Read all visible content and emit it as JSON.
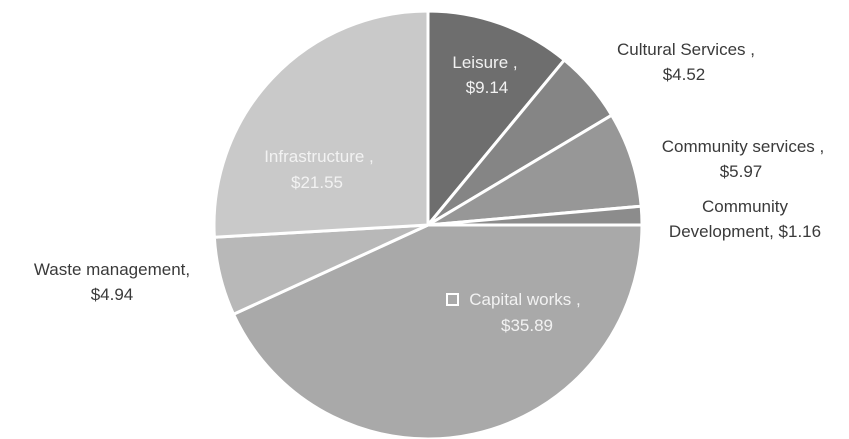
{
  "chart_data": {
    "type": "pie",
    "title": "",
    "slices": [
      {
        "label": "Leisure ,",
        "value_label": "$9.14",
        "value": 9.14,
        "color": "#6e6e6e"
      },
      {
        "label": "Cultural Services ,",
        "value_label": "$4.52",
        "value": 4.52,
        "color": "#858585"
      },
      {
        "label": "Community services ,",
        "value_label": "$5.97",
        "value": 5.97,
        "color": "#979797"
      },
      {
        "label": "Community",
        "label_line2": "Development, $1.16",
        "value": 1.16,
        "color": "#8c8c8c"
      },
      {
        "label": "Capital works ,",
        "value_label": "$35.89",
        "value": 35.89,
        "color": "#a9a9a9"
      },
      {
        "label": "Waste management,",
        "value_label": "$4.94",
        "value": 4.94,
        "color": "#b8b8b8"
      },
      {
        "label": "Infrastructure ,",
        "value_label": "$21.55",
        "value": 21.55,
        "color": "#c9c9c9"
      }
    ],
    "legend": "none"
  }
}
